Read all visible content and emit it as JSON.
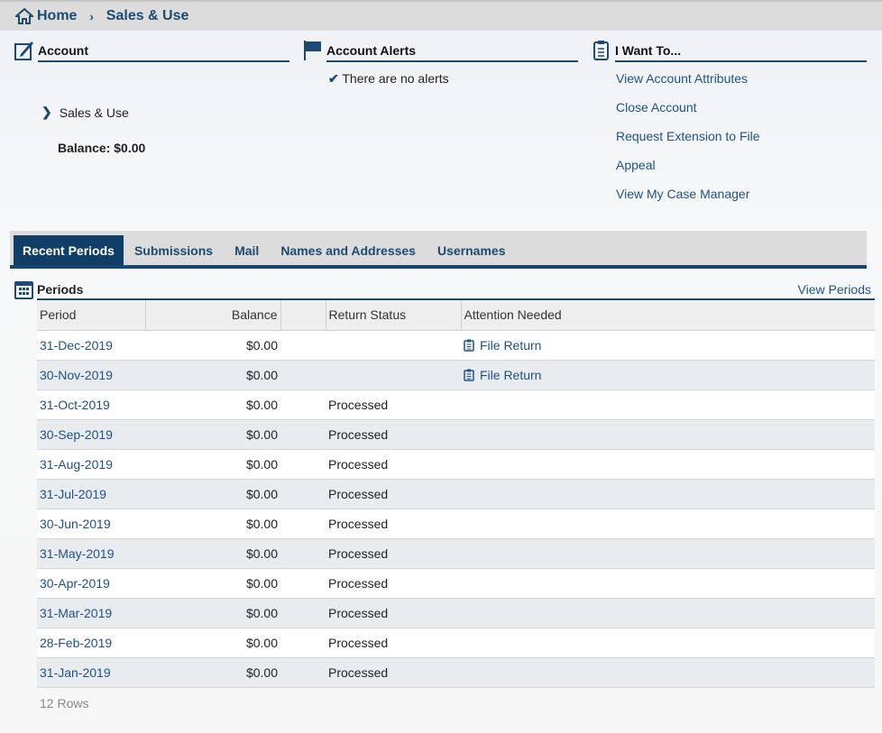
{
  "breadcrumb": {
    "home": "Home",
    "current": "Sales & Use"
  },
  "account": {
    "title": "Account",
    "item": "Sales & Use",
    "balance": "Balance: $0.00"
  },
  "alerts": {
    "title": "Account Alerts",
    "message": "There are no alerts"
  },
  "want": {
    "title": "I Want To...",
    "links": [
      "View Account Attributes",
      "Close Account",
      "Request Extension to File",
      "Appeal",
      "View My Case Manager"
    ]
  },
  "tabs": [
    "Recent Periods",
    "Submissions",
    "Mail",
    "Names and Addresses",
    "Usernames"
  ],
  "periods": {
    "title": "Periods",
    "view_link": "View Periods",
    "headers": [
      "Period",
      "Balance",
      "",
      "Return Status",
      "Attention Needed"
    ],
    "rows": [
      {
        "period": "31-Dec-2019",
        "balance": "$0.00",
        "status": "",
        "attention": "File Return"
      },
      {
        "period": "30-Nov-2019",
        "balance": "$0.00",
        "status": "",
        "attention": "File Return"
      },
      {
        "period": "31-Oct-2019",
        "balance": "$0.00",
        "status": "Processed",
        "attention": ""
      },
      {
        "period": "30-Sep-2019",
        "balance": "$0.00",
        "status": "Processed",
        "attention": ""
      },
      {
        "period": "31-Aug-2019",
        "balance": "$0.00",
        "status": "Processed",
        "attention": ""
      },
      {
        "period": "31-Jul-2019",
        "balance": "$0.00",
        "status": "Processed",
        "attention": ""
      },
      {
        "period": "30-Jun-2019",
        "balance": "$0.00",
        "status": "Processed",
        "attention": ""
      },
      {
        "period": "31-May-2019",
        "balance": "$0.00",
        "status": "Processed",
        "attention": ""
      },
      {
        "period": "30-Apr-2019",
        "balance": "$0.00",
        "status": "Processed",
        "attention": ""
      },
      {
        "period": "31-Mar-2019",
        "balance": "$0.00",
        "status": "Processed",
        "attention": ""
      },
      {
        "period": "28-Feb-2019",
        "balance": "$0.00",
        "status": "Processed",
        "attention": ""
      },
      {
        "period": "31-Jan-2019",
        "balance": "$0.00",
        "status": "Processed",
        "attention": ""
      }
    ],
    "row_count": "12 Rows"
  },
  "colors": {
    "primary": "#1b4a72",
    "active_tab": "#0f3f66",
    "link": "#1f5186"
  }
}
